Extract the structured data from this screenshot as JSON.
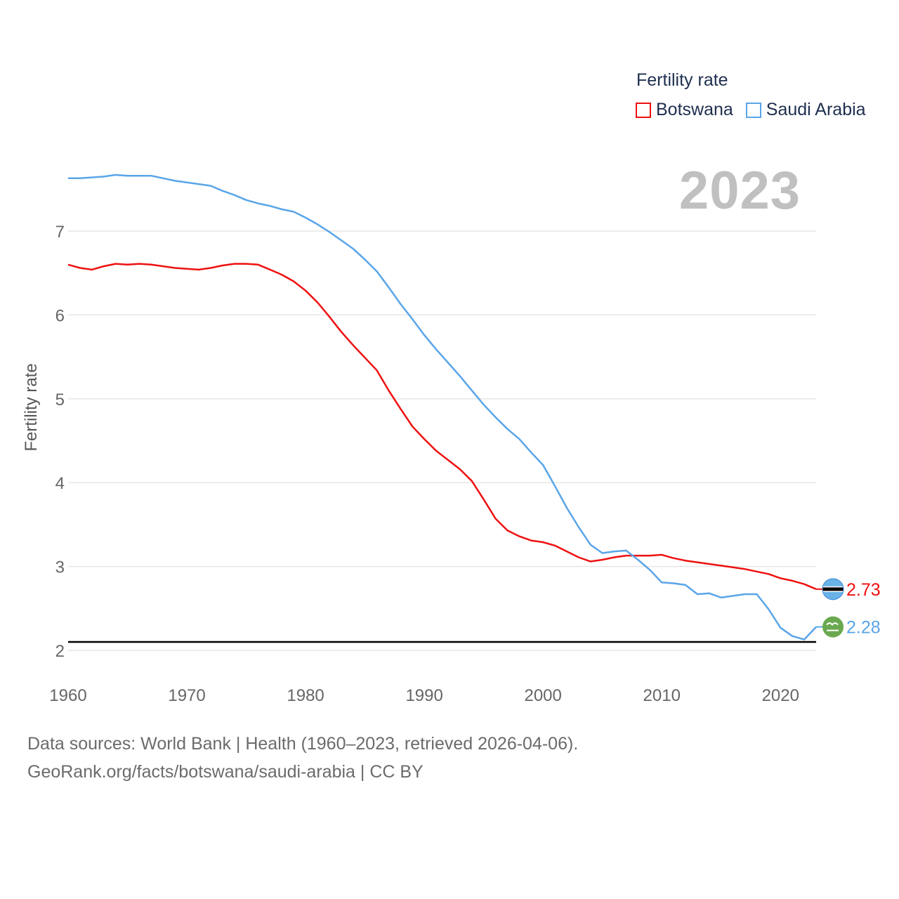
{
  "legend": {
    "title": "Fertility rate",
    "items": [
      {
        "label": "Botswana",
        "color": "#ee1111"
      },
      {
        "label": "Saudi Arabia",
        "color": "#5aa5e8"
      }
    ]
  },
  "year_display": "2023",
  "footer": {
    "line1": "Data sources: World Bank | Health (1960–2023, retrieved 2026-04-06).",
    "line2": "GeoRank.org/facts/botswana/saudi-arabia | CC BY"
  },
  "chart_data": {
    "type": "line",
    "title": "",
    "xlabel": "",
    "ylabel": "Fertility rate",
    "xlim": [
      1960,
      2023
    ],
    "ylim": [
      2,
      7.8
    ],
    "x_ticks": [
      1960,
      1970,
      1980,
      1990,
      2000,
      2010,
      2020
    ],
    "y_ticks": [
      2,
      3,
      4,
      5,
      6,
      7
    ],
    "reference_line": {
      "y": 2.1,
      "color": "#000000"
    },
    "grid": true,
    "x": [
      1960,
      1961,
      1962,
      1963,
      1964,
      1965,
      1966,
      1967,
      1968,
      1969,
      1970,
      1971,
      1972,
      1973,
      1974,
      1975,
      1976,
      1977,
      1978,
      1979,
      1980,
      1981,
      1982,
      1983,
      1984,
      1985,
      1986,
      1987,
      1988,
      1989,
      1990,
      1991,
      1992,
      1993,
      1994,
      1995,
      1996,
      1997,
      1998,
      1999,
      2000,
      2001,
      2002,
      2003,
      2004,
      2005,
      2006,
      2007,
      2008,
      2009,
      2010,
      2011,
      2012,
      2013,
      2014,
      2015,
      2016,
      2017,
      2018,
      2019,
      2020,
      2021,
      2022,
      2023
    ],
    "series": [
      {
        "name": "Botswana",
        "color": "#ee1111",
        "end_label": "2.73",
        "flag": "botswana-flag-icon",
        "values": [
          6.6,
          6.56,
          6.54,
          6.58,
          6.61,
          6.6,
          6.61,
          6.6,
          6.58,
          6.56,
          6.55,
          6.54,
          6.56,
          6.59,
          6.61,
          6.61,
          6.6,
          6.54,
          6.48,
          6.4,
          6.29,
          6.15,
          5.98,
          5.8,
          5.64,
          5.49,
          5.34,
          5.1,
          4.88,
          4.67,
          4.52,
          4.38,
          4.27,
          4.16,
          4.02,
          3.8,
          3.57,
          3.43,
          3.36,
          3.31,
          3.29,
          3.25,
          3.18,
          3.11,
          3.06,
          3.08,
          3.11,
          3.13,
          3.13,
          3.13,
          3.14,
          3.1,
          3.07,
          3.05,
          3.03,
          3.01,
          2.99,
          2.97,
          2.94,
          2.91,
          2.86,
          2.83,
          2.79,
          2.73
        ]
      },
      {
        "name": "Saudi Arabia",
        "color": "#5aa5e8",
        "end_label": "2.28",
        "flag": "saudi-arabia-flag-icon",
        "values": [
          7.63,
          7.63,
          7.64,
          7.65,
          7.67,
          7.66,
          7.66,
          7.66,
          7.63,
          7.6,
          7.58,
          7.56,
          7.54,
          7.48,
          7.43,
          7.37,
          7.33,
          7.3,
          7.26,
          7.23,
          7.16,
          7.08,
          6.99,
          6.89,
          6.79,
          6.66,
          6.52,
          6.33,
          6.13,
          5.95,
          5.76,
          5.59,
          5.43,
          5.27,
          5.1,
          4.93,
          4.78,
          4.64,
          4.52,
          4.36,
          4.21,
          3.96,
          3.7,
          3.47,
          3.26,
          3.16,
          3.18,
          3.19,
          3.08,
          2.96,
          2.81,
          2.8,
          2.78,
          2.67,
          2.68,
          2.63,
          2.65,
          2.67,
          2.67,
          2.49,
          2.27,
          2.17,
          2.13,
          2.28
        ]
      }
    ]
  }
}
